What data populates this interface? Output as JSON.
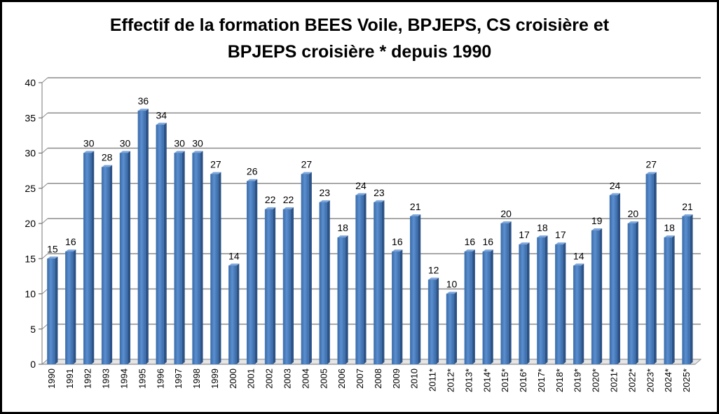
{
  "chart_data": {
    "type": "bar",
    "title_line1": "Effectif de la formation BEES Voile, BPJEPS, CS croisière et",
    "title_line2": "BPJEPS croisière * depuis 1990",
    "xlabel": "",
    "ylabel": "",
    "ylim": [
      0,
      40
    ],
    "yticks": [
      0,
      5,
      10,
      15,
      20,
      25,
      30,
      35,
      40
    ],
    "grid": true,
    "bar_color": "#4F81BD",
    "categories": [
      "1990",
      "1991",
      "1992",
      "1993",
      "1994",
      "1995",
      "1996",
      "1997",
      "1998",
      "1999",
      "2000",
      "2001",
      "2002",
      "2003",
      "2004",
      "2005",
      "2006",
      "2007",
      "2008",
      "2009",
      "2010",
      "2011*",
      "2012*",
      "2013*",
      "2014*",
      "2015*",
      "2016*",
      "2017*",
      "2018*",
      "2019*",
      "2020*",
      "2021*",
      "2022*",
      "2023*",
      "2024*",
      "2025*"
    ],
    "values": [
      15,
      16,
      30,
      28,
      30,
      36,
      34,
      30,
      30,
      27,
      14,
      26,
      22,
      22,
      27,
      23,
      18,
      24,
      23,
      16,
      21,
      12,
      10,
      16,
      16,
      20,
      17,
      18,
      17,
      14,
      19,
      24,
      20,
      27,
      18,
      21
    ]
  }
}
